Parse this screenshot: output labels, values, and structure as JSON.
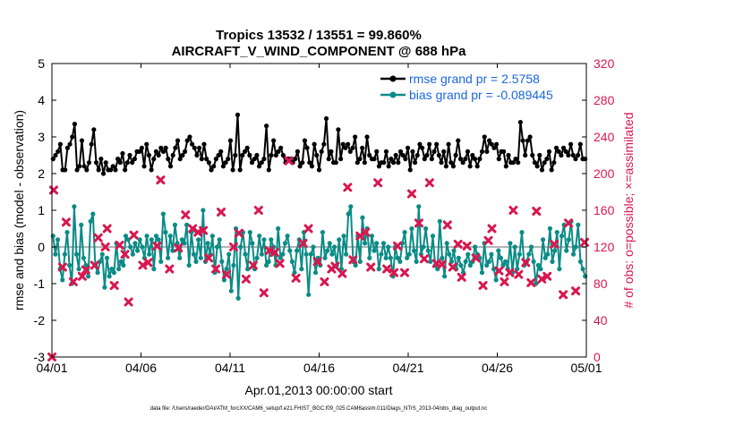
{
  "colors": {
    "rmse": "#000000",
    "bias": "#0b8b86",
    "obs": "#d9174f",
    "zero_line": "#b3b3b3",
    "legend_text": "#1a66dd"
  },
  "chart_data": {
    "type": "line",
    "title_line1": "Tropics 13532 / 13551 = 99.860%",
    "title_line2": "AIRCRAFT_V_WIND_COMPONENT @ 688 hPa",
    "xlabel": "Apr.01,2013 00:00:00 start",
    "ylabel_left": "rmse and bias (model - observation)",
    "ylabel_right": "# of obs: o=possible; ×=assimilated",
    "x_range_days": [
      0,
      30
    ],
    "x_ticks": [
      0,
      5,
      10,
      15,
      20,
      25,
      30
    ],
    "x_tick_labels": [
      "04/01",
      "04/06",
      "04/11",
      "04/16",
      "04/21",
      "04/26",
      "05/01"
    ],
    "ylim_left": [
      -3,
      5
    ],
    "y_ticks_left": [
      -3,
      -2,
      -1,
      0,
      1,
      2,
      3,
      4,
      5
    ],
    "y_tick_labels_left": [
      "-3",
      "-2",
      "-1",
      "0",
      "1",
      "2",
      "3",
      "4",
      "5"
    ],
    "ylim_right": [
      0,
      320
    ],
    "y_ticks_right": [
      0,
      40,
      80,
      120,
      160,
      200,
      240,
      280,
      320
    ],
    "y_tick_labels_right": [
      "0",
      "40",
      "80",
      "120",
      "160",
      "200",
      "240",
      "280",
      "320"
    ],
    "series": [
      {
        "name": "rmse grand pr = 2.5758",
        "axis": "left",
        "values": [
          2.4,
          2.5,
          2.6,
          2.8,
          2.1,
          2.1,
          2.7,
          2.8,
          3.0,
          3.35,
          2.1,
          2.2,
          2.9,
          2.2,
          2.1,
          2.3,
          2.8,
          3.2,
          2.3,
          2.1,
          2.4,
          2.0,
          2.3,
          2.1,
          2.1,
          2.2,
          2.1,
          2.4,
          2.3,
          2.55,
          2.1,
          2.3,
          2.5,
          2.3,
          2.4,
          2.6,
          2.6,
          2.7,
          2.2,
          2.8,
          2.5,
          2.1,
          2.4,
          2.6,
          2.5,
          2.7,
          2.6,
          2.7,
          2.4,
          2.2,
          2.5,
          2.7,
          2.9,
          2.4,
          2.5,
          2.6,
          2.9,
          3.0,
          2.8,
          2.7,
          2.5,
          2.7,
          2.4,
          2.8,
          2.4,
          2.3,
          2.1,
          2.2,
          2.4,
          2.5,
          2.6,
          2.2,
          2.3,
          2.4,
          2.9,
          2.1,
          2.5,
          3.6,
          2.1,
          2.5,
          2.6,
          2.7,
          2.5,
          2.3,
          2.4,
          2.5,
          2.2,
          2.3,
          2.4,
          3.3,
          2.1,
          2.5,
          2.9,
          2.5,
          2.6,
          2.7,
          2.5,
          2.3,
          2.4,
          2.4,
          2.3,
          2.4,
          2.6,
          2.2,
          2.3,
          2.9,
          2.7,
          2.3,
          2.2,
          2.8,
          2.5,
          2.1,
          2.6,
          2.8,
          3.5,
          2.4,
          2.6,
          2.3,
          2.3,
          3.2,
          2.4,
          2.8,
          2.7,
          2.8,
          2.6,
          2.7,
          3.0,
          2.3,
          2.4,
          2.7,
          2.3,
          3.0,
          2.5,
          2.4,
          2.4,
          2.6,
          2.2,
          2.3,
          2.3,
          2.6,
          2.2,
          2.4,
          2.3,
          2.5,
          2.3,
          2.6,
          2.5,
          2.4,
          2.7,
          2.1,
          2.6,
          2.3,
          2.5,
          2.8,
          2.7,
          2.4,
          2.5,
          2.8,
          2.4,
          2.6,
          2.8,
          2.5,
          2.3,
          2.6,
          2.2,
          2.8,
          2.3,
          2.2,
          2.5,
          2.9,
          2.4,
          2.3,
          2.4,
          2.6,
          2.2,
          2.5,
          2.4,
          2.2,
          2.4,
          2.6,
          3.0,
          2.6,
          2.9,
          2.8,
          2.7,
          2.8,
          2.4,
          2.6,
          2.6,
          2.2,
          2.5,
          2.3,
          2.3,
          2.4,
          2.3,
          3.4,
          2.9,
          2.5,
          2.9,
          3.0,
          2.5,
          2.3,
          2.2,
          2.5,
          2.1,
          2.3,
          2.4,
          2.6,
          2.1,
          2.3,
          2.7,
          2.6,
          2.5,
          2.7,
          2.6,
          2.5,
          2.8,
          2.5,
          2.4,
          2.5,
          2.8,
          2.4,
          2.4
        ]
      },
      {
        "name": "bias grand pr = -0.089445",
        "axis": "left",
        "values": [
          0.3,
          -0.2,
          0.2,
          -0.6,
          -0.9,
          -0.2,
          0.4,
          -0.5,
          -1.0,
          1.1,
          -0.2,
          -0.6,
          0.6,
          -0.3,
          -0.5,
          -0.8,
          0.7,
          0.9,
          -0.5,
          -0.7,
          -0.4,
          -0.2,
          -1.1,
          -0.3,
          -0.8,
          -0.6,
          -0.7,
          0.1,
          -0.6,
          -0.4,
          -0.5,
          0.3,
          0.2,
          0.0,
          -0.2,
          0.1,
          -0.1,
          0.2,
          0.0,
          -0.3,
          0.3,
          -0.2,
          0.2,
          -0.6,
          0.3,
          0.2,
          -0.4,
          0.9,
          0.4,
          -0.3,
          0.3,
          -0.1,
          0.6,
          0.1,
          -0.3,
          0.2,
          0.1,
          0.6,
          -0.5,
          0.4,
          -0.2,
          -0.4,
          0.2,
          -0.3,
          1.0,
          -0.4,
          0.1,
          -0.2,
          0.3,
          -0.7,
          0.0,
          0.2,
          -0.4,
          -0.9,
          -0.6,
          -0.2,
          -1.2,
          -0.5,
          0.5,
          -1.4,
          0.0,
          0.4,
          -0.2,
          -0.6,
          0.4,
          0.1,
          -0.6,
          -0.3,
          0.3,
          -0.2,
          0.2,
          -0.5,
          -0.4,
          0.2,
          0.0,
          -0.5,
          0.5,
          -0.3,
          -0.2,
          0.1,
          0.3,
          -0.1,
          -0.4,
          -0.7,
          -0.1,
          0.2,
          -0.6,
          0.4,
          -0.2,
          -1.3,
          -0.2,
          0.0,
          -0.7,
          -0.3,
          -0.5,
          0.4,
          -0.3,
          -0.1,
          0.1,
          -0.2,
          0.0,
          -0.5,
          0.2,
          -0.6,
          0.3,
          -0.2,
          0.9,
          1.1,
          -0.4,
          -0.5,
          0.3,
          -0.4,
          0.8,
          0.1,
          0.5,
          -0.3,
          0.3,
          -0.1,
          0.1,
          -0.6,
          -0.2,
          0.1,
          -0.3,
          0.0,
          -0.3,
          -0.8,
          0.0,
          -0.3,
          -0.4,
          0.1,
          0.4,
          -0.3,
          -0.2,
          0.5,
          -0.1,
          -0.4,
          1.1,
          -0.2,
          0.0,
          0.5,
          -0.1,
          -0.4,
          0.3,
          -0.5,
          -0.6,
          0.7,
          -0.3,
          -0.8,
          0.1,
          -0.2,
          -0.4,
          -0.1,
          -0.6,
          -0.3,
          -0.5,
          -0.7,
          -0.4,
          -0.2,
          -0.5,
          -0.4,
          0.0,
          -0.2,
          -0.3,
          -0.7,
          0.1,
          -0.5,
          -0.4,
          -0.2,
          -0.6,
          -0.9,
          -0.1,
          -0.3,
          -0.5,
          -0.4,
          -0.6,
          0.1,
          -0.7,
          0.0,
          -0.6,
          -0.2,
          0.4,
          -0.5,
          -0.4,
          -0.2,
          0.0,
          -0.4,
          -1.0,
          -0.5,
          -0.6,
          0.2,
          -0.3,
          -0.2,
          0.5,
          -0.4,
          -0.1,
          0.4,
          -0.6,
          0.3,
          0.6,
          -0.1,
          0.2,
          0.7,
          -0.2,
          0.0,
          0.6,
          -0.4,
          -0.6,
          -0.8
        ]
      }
    ],
    "obs_assimilated_markers": {
      "axis": "right",
      "points": [
        [
          0.0,
          0
        ],
        [
          0.1,
          182
        ],
        [
          0.6,
          98
        ],
        [
          0.8,
          147
        ],
        [
          1.2,
          82
        ],
        [
          1.7,
          88
        ],
        [
          1.9,
          95
        ],
        [
          2.4,
          100
        ],
        [
          2.6,
          130
        ],
        [
          3.0,
          120
        ],
        [
          3.1,
          140
        ],
        [
          3.5,
          78
        ],
        [
          3.8,
          122
        ],
        [
          4.1,
          112
        ],
        [
          4.3,
          60
        ],
        [
          4.6,
          133
        ],
        [
          5.1,
          100
        ],
        [
          5.4,
          103
        ],
        [
          5.9,
          121
        ],
        [
          6.1,
          193
        ],
        [
          6.6,
          96
        ],
        [
          7.1,
          119
        ],
        [
          7.5,
          155
        ],
        [
          7.9,
          140
        ],
        [
          8.2,
          136
        ],
        [
          8.5,
          138
        ],
        [
          8.8,
          108
        ],
        [
          9.2,
          96
        ],
        [
          9.5,
          158
        ],
        [
          9.8,
          90
        ],
        [
          10.2,
          120
        ],
        [
          10.5,
          135
        ],
        [
          10.9,
          85
        ],
        [
          11.3,
          100
        ],
        [
          11.6,
          160
        ],
        [
          11.9,
          70
        ],
        [
          12.2,
          116
        ],
        [
          12.5,
          114
        ],
        [
          12.8,
          102
        ],
        [
          13.3,
          214
        ],
        [
          13.7,
          86
        ],
        [
          14.1,
          124
        ],
        [
          14.4,
          140
        ],
        [
          14.9,
          104
        ],
        [
          15.3,
          82
        ],
        [
          15.7,
          96
        ],
        [
          15.9,
          99
        ],
        [
          16.3,
          91
        ],
        [
          16.6,
          185
        ],
        [
          16.9,
          106
        ],
        [
          17.3,
          132
        ],
        [
          17.6,
          136
        ],
        [
          17.9,
          98
        ],
        [
          18.3,
          190
        ],
        [
          18.8,
          96
        ],
        [
          19.2,
          92
        ],
        [
          19.4,
          121
        ],
        [
          19.8,
          92
        ],
        [
          20.2,
          178
        ],
        [
          20.6,
          146
        ],
        [
          20.9,
          107
        ],
        [
          21.2,
          190
        ],
        [
          21.6,
          102
        ],
        [
          21.9,
          101
        ],
        [
          22.2,
          144
        ],
        [
          22.5,
          98
        ],
        [
          22.8,
          123
        ],
        [
          23.0,
          87
        ],
        [
          23.3,
          121
        ],
        [
          23.8,
          108
        ],
        [
          24.2,
          78
        ],
        [
          24.5,
          127
        ],
        [
          24.7,
          140
        ],
        [
          25.1,
          94
        ],
        [
          25.4,
          82
        ],
        [
          25.7,
          92
        ],
        [
          25.9,
          160
        ],
        [
          26.2,
          90
        ],
        [
          26.6,
          103
        ],
        [
          26.9,
          81
        ],
        [
          27.2,
          159
        ],
        [
          27.5,
          85
        ],
        [
          27.8,
          88
        ],
        [
          28.2,
          123
        ],
        [
          28.7,
          68
        ],
        [
          29.0,
          146
        ],
        [
          29.4,
          72
        ],
        [
          29.9,
          125
        ]
      ]
    }
  },
  "footer": "data file: /Users/raeder/DAI/ATM_forcXX/CAM6_setup/f.e21.FHIST_BGC.f09_025.CAM6assim.011/Diags_NTrS_2013-04/obs_diag_output.nc"
}
